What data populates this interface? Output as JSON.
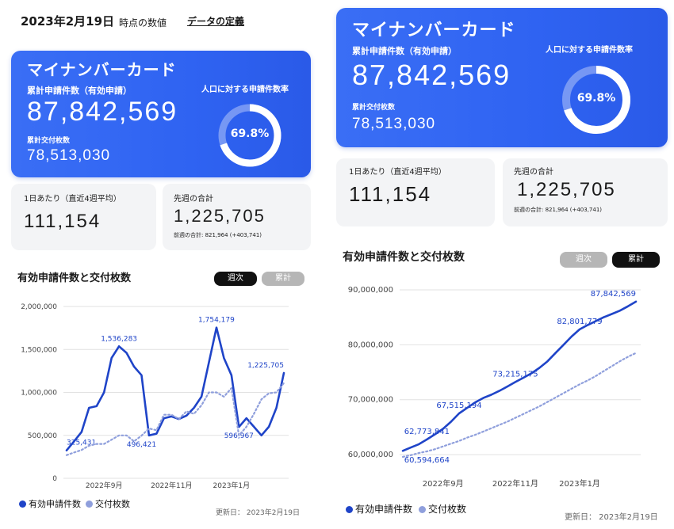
{
  "header": {
    "date": "2023年2月19日",
    "note": "時点の数値",
    "definition_link": "データの定義"
  },
  "colors": {
    "primary_blue": "#2f63f2",
    "line_dark": "#1f44c8",
    "line_light": "#8f9fdc",
    "toggle_on": "#111111",
    "toggle_off": "#b6b6b6"
  },
  "left": {
    "card": {
      "title": "マイナンバーカード",
      "applications_label": "累計申請件数（有効申請）",
      "applications_value": "87,842,569",
      "issued_label": "累計交付枚数",
      "issued_value": "78,513,030",
      "rate_label": "人口に対する申請件数率",
      "rate_value": "69.8%",
      "rate_fraction": 0.698
    },
    "daily": {
      "label": "1日あたり（直近4週平均）",
      "value": "111,154"
    },
    "weekly": {
      "label": "先週の合計",
      "value": "1,225,705",
      "sub": "前週の合計: 821,964 (+403,741)"
    },
    "chart": {
      "title": "有効申請件数と交付枚数",
      "toggle_weekly": "週次",
      "toggle_cumulative": "累計",
      "legend_applications": "有効申請件数",
      "legend_issued": "交付枚数",
      "updated": "更新日：  2023年2月19日"
    }
  },
  "right": {
    "card": {
      "title": "マイナンバーカード",
      "applications_label": "累計申請件数（有効申請）",
      "applications_value": "87,842,569",
      "issued_label": "累計交付枚数",
      "issued_value": "78,513,030",
      "rate_label": "人口に対する申請件数率",
      "rate_value": "69.8%",
      "rate_fraction": 0.698
    },
    "daily": {
      "label": "1日あたり（直近4週平均）",
      "value": "111,154"
    },
    "weekly": {
      "label": "先週の合計",
      "value": "1,225,705",
      "sub": "前週の合計: 821,964 (+403,741)"
    },
    "chart": {
      "title": "有効申請件数と交付枚数",
      "toggle_weekly": "週次",
      "toggle_cumulative": "累計",
      "legend_applications": "有効申請件数",
      "legend_issued": "交付枚数",
      "updated": "更新日：  2023年2月19日"
    }
  },
  "chart_data": [
    {
      "type": "line",
      "title": "有効申請件数と交付枚数",
      "mode": "週次",
      "ylim": [
        0,
        2000000
      ],
      "yticks": [
        0,
        500000,
        1000000,
        1500000,
        2000000
      ],
      "ytick_labels": [
        "0",
        "500,000",
        "1,000,000",
        "1,500,000",
        "2,000,000"
      ],
      "x_tick_labels": [
        {
          "index": 5,
          "label": "2022年9月"
        },
        {
          "index": 14,
          "label": "2022年11月"
        },
        {
          "index": 22,
          "label": "2023年1月"
        }
      ],
      "grid": true,
      "legend": "bottom-left",
      "series": [
        {
          "name": "有効申請件数",
          "values": [
            325431,
            430000,
            540000,
            820000,
            840000,
            1000000,
            1400000,
            1536283,
            1460000,
            1300000,
            1200000,
            500000,
            520000,
            700000,
            720000,
            690000,
            730000,
            820000,
            950000,
            1350000,
            1754179,
            1400000,
            1200000,
            596967,
            700000,
            600000,
            500000,
            600000,
            820000,
            1225705
          ],
          "annotations": [
            {
              "index": 0,
              "label": "325,431"
            },
            {
              "index": 7,
              "label": "1,536,283"
            },
            {
              "index": 20,
              "label": "1,754,179"
            },
            {
              "index": 23,
              "label": "596,967"
            },
            {
              "index": 29,
              "label": "1,225,705"
            }
          ]
        },
        {
          "name": "交付枚数",
          "values": [
            270000,
            300000,
            330000,
            380000,
            400000,
            400000,
            450000,
            500000,
            500000,
            430000,
            496421,
            580000,
            560000,
            740000,
            740000,
            690000,
            780000,
            750000,
            850000,
            1000000,
            1000000,
            950000,
            1050000,
            500000,
            600000,
            750000,
            920000,
            990000,
            1000000,
            1110000
          ],
          "annotations": [
            {
              "index": 10,
              "label": "496,421"
            }
          ]
        }
      ]
    },
    {
      "type": "line",
      "title": "有効申請件数と交付枚数",
      "mode": "累計",
      "ylim": [
        58000000,
        91000000
      ],
      "yticks": [
        60000000,
        70000000,
        80000000,
        90000000
      ],
      "ytick_labels": [
        "60,000,000",
        "70,000,000",
        "80,000,000",
        "90,000,000"
      ],
      "x_tick_labels": [
        {
          "index": 5,
          "label": "2022年9月"
        },
        {
          "index": 14,
          "label": "2022年11月"
        },
        {
          "index": 22,
          "label": "2023年1月"
        }
      ],
      "grid": true,
      "legend": "bottom-left",
      "series": [
        {
          "name": "有効申請件数",
          "values": [
            60700000,
            61300000,
            61900000,
            62773841,
            63700000,
            64700000,
            66000000,
            67515194,
            68500000,
            69500000,
            70300000,
            70900000,
            71600000,
            72400000,
            73215175,
            74000000,
            74800000,
            75800000,
            77000000,
            78500000,
            80000000,
            81500000,
            82801779,
            83600000,
            84300000,
            85000000,
            85600000,
            86200000,
            87000000,
            87842569
          ],
          "annotations": [
            {
              "index": 3,
              "label": "62,773,841"
            },
            {
              "index": 7,
              "label": "67,515,194"
            },
            {
              "index": 14,
              "label": "73,215,175"
            },
            {
              "index": 22,
              "label": "82,801,779"
            },
            {
              "index": 29,
              "label": "87,842,569"
            }
          ]
        },
        {
          "name": "交付枚数",
          "values": [
            59600000,
            59900000,
            60300000,
            60594664,
            61000000,
            61500000,
            62000000,
            62500000,
            63100000,
            63600000,
            64200000,
            64800000,
            65400000,
            66000000,
            66700000,
            67400000,
            68100000,
            68800000,
            69600000,
            70400000,
            71200000,
            72000000,
            72800000,
            73500000,
            74300000,
            75200000,
            76100000,
            77000000,
            77800000,
            78513030
          ],
          "annotations": [
            {
              "index": 3,
              "label": "60,594,664"
            }
          ]
        }
      ]
    }
  ]
}
